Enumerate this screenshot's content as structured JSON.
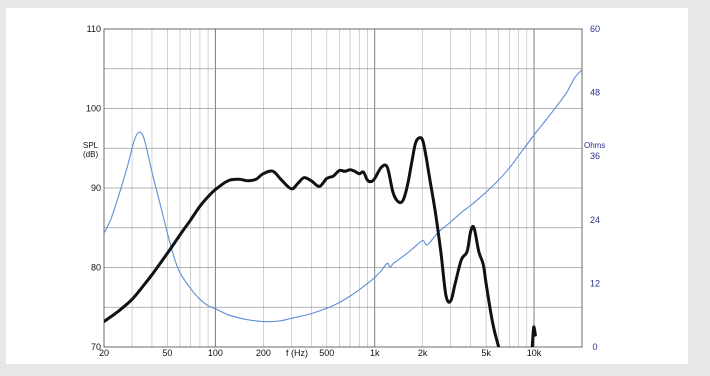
{
  "chart_data": {
    "type": "line",
    "x_scale": "log",
    "xlim": [
      20,
      20000
    ],
    "x_ticks": [
      {
        "value": 20,
        "label": "20"
      },
      {
        "value": 50,
        "label": "50"
      },
      {
        "value": 100,
        "label": "100"
      },
      {
        "value": 200,
        "label": "200"
      },
      {
        "value": 500,
        "label": "500"
      },
      {
        "value": 1000,
        "label": "1k"
      },
      {
        "value": 2000,
        "label": "2k"
      },
      {
        "value": 5000,
        "label": "5k"
      },
      {
        "value": 10000,
        "label": "10k"
      }
    ],
    "xlabel": "f (Hz)",
    "ylabel_left": "SPL (dB)",
    "ylabel_left_lines": [
      "SPL",
      "(dB)"
    ],
    "ylim_left": [
      70,
      110
    ],
    "y_ticks_left": [
      70,
      80,
      90,
      100,
      110
    ],
    "ylabel_right": "Ohms",
    "ylim_right": [
      0,
      60
    ],
    "y_ticks_right": [
      0,
      12,
      24,
      36,
      48,
      60
    ],
    "grid": true,
    "colors": {
      "spl": "#111111",
      "impedance": "#5b8fd6",
      "right_axis_text": "#2c2f8f",
      "grid": "#9a9a9a"
    },
    "series": [
      {
        "axis": "left",
        "x": [
          20,
          25,
          30,
          35,
          40,
          50,
          60,
          70,
          80,
          90,
          100,
          120,
          140,
          160,
          180,
          200,
          230,
          260,
          300,
          330,
          360,
          400,
          450,
          500,
          550,
          600,
          650,
          700,
          750,
          800,
          850,
          900,
          950,
          1000,
          1100,
          1200,
          1300,
          1400,
          1500,
          1600,
          1700,
          1800,
          1900,
          2000,
          2100,
          2200,
          2400,
          2600,
          2800,
          3000,
          3200,
          3500,
          3800,
          4000,
          4200,
          4500,
          4800,
          5000,
          5500,
          6000,
          6500,
          9700,
          9900,
          10000,
          10200
        ],
        "values": [
          73.2,
          74.6,
          76,
          77.6,
          79.1,
          81.8,
          84.1,
          86,
          87.7,
          88.9,
          89.8,
          90.9,
          91.1,
          90.9,
          91.1,
          91.8,
          92.1,
          91,
          89.9,
          90.6,
          91.3,
          90.9,
          90.2,
          91.2,
          91.5,
          92.2,
          92.1,
          92.3,
          92.1,
          91.8,
          92,
          91,
          90.8,
          91.2,
          92.6,
          92.6,
          89.5,
          88.3,
          88.4,
          90.2,
          93,
          95.6,
          96.3,
          96,
          94,
          91.5,
          87,
          82,
          76.5,
          75.8,
          78,
          81,
          82,
          84.5,
          85,
          82,
          80.4,
          78,
          73,
          70,
          68,
          69.5,
          72,
          72.5,
          71.5
        ]
      },
      {
        "axis": "right",
        "x": [
          20,
          22,
          25,
          28,
          31,
          33,
          35,
          37,
          40,
          45,
          50,
          55,
          60,
          70,
          80,
          90,
          100,
          120,
          150,
          200,
          250,
          300,
          400,
          500,
          600,
          700,
          800,
          900,
          1000,
          1100,
          1200,
          1250,
          1300,
          1400,
          1600,
          1800,
          2000,
          2100,
          2200,
          2500,
          3000,
          3500,
          4000,
          5000,
          6000,
          7000,
          8000,
          10000,
          12000,
          14000,
          16000,
          18000,
          20000
        ],
        "values": [
          21.5,
          24,
          29,
          34,
          39,
          40.5,
          40,
          37.5,
          33,
          27,
          21.5,
          17,
          14,
          11,
          9,
          7.8,
          7.2,
          6.1,
          5.3,
          4.8,
          4.9,
          5.4,
          6.3,
          7.3,
          8.4,
          9.6,
          10.8,
          12,
          13.1,
          14.4,
          15.8,
          15,
          15.7,
          16.4,
          17.7,
          19,
          20.1,
          19.3,
          19.6,
          21.6,
          23.6,
          25.4,
          26.7,
          29.2,
          31.5,
          33.8,
          36.1,
          40,
          43,
          45.6,
          48,
          50.8,
          52.3
        ]
      }
    ]
  }
}
